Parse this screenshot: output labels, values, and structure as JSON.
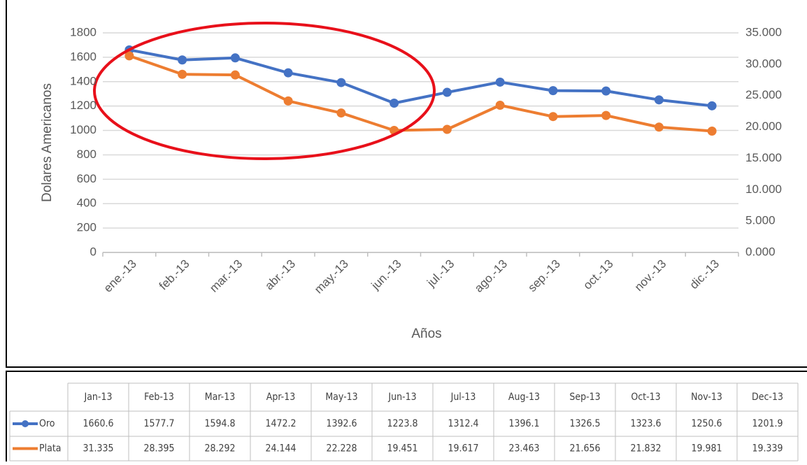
{
  "chart_data": {
    "type": "line",
    "categories": [
      "ene.-13",
      "feb.-13",
      "mar.-13",
      "abr.-13",
      "may.-13",
      "jun.-13",
      "jul.-13",
      "ago.-13",
      "sep.-13",
      "oct.-13",
      "nov.-13",
      "dic.-13"
    ],
    "series": [
      {
        "name": "Oro",
        "color": "#4472c4",
        "values": [
          1660.6,
          1577.7,
          1594.8,
          1472.2,
          1392.6,
          1223.8,
          1312.4,
          1396.1,
          1326.5,
          1323.6,
          1250.6,
          1201.9
        ]
      },
      {
        "name": "Plata",
        "color": "#ed7d31",
        "axis": "y2",
        "values": [
          31.335,
          28.395,
          28.292,
          24.144,
          22.228,
          19.451,
          19.617,
          23.463,
          21.656,
          21.832,
          19.981,
          19.339
        ]
      }
    ],
    "ylabel": "Dolares Americanos",
    "xlabel": "Años",
    "ylim": [
      0,
      1800
    ],
    "yticks": [
      0,
      200,
      400,
      600,
      800,
      1000,
      1200,
      1400,
      1600,
      1800
    ],
    "y2lim": [
      0,
      35
    ],
    "y2ticks": [
      {
        "value": 0,
        "label": "0.000"
      },
      {
        "value": 5,
        "label": "5.000"
      },
      {
        "value": 10,
        "label": "10.000"
      },
      {
        "value": 15,
        "label": "15.000"
      },
      {
        "value": 20,
        "label": "20.000"
      },
      {
        "value": 25,
        "label": "25.000"
      },
      {
        "value": 30,
        "label": "30.000"
      },
      {
        "value": 35,
        "label": "35.000"
      }
    ],
    "grid": true
  },
  "table": {
    "columns": [
      "Jan-13",
      "Feb-13",
      "Mar-13",
      "Apr-13",
      "May-13",
      "Jun-13",
      "Jul-13",
      "Aug-13",
      "Sep-13",
      "Oct-13",
      "Nov-13",
      "Dec-13"
    ]
  }
}
